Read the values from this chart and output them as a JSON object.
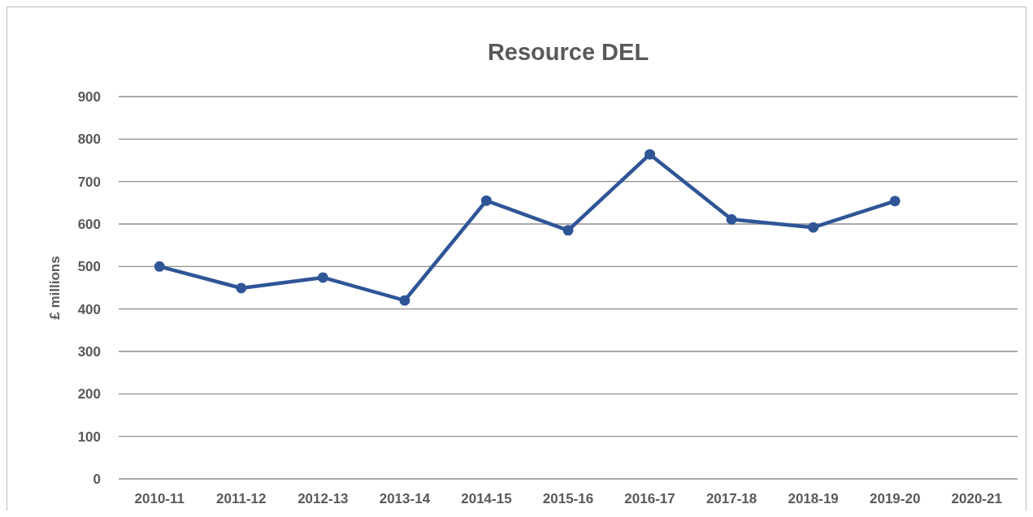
{
  "chart_data": {
    "type": "line",
    "title": "Resource DEL",
    "ylabel": "£ millions",
    "categories": [
      "2010-11",
      "2011-12",
      "2012-13",
      "2013-14",
      "2014-15",
      "2015-16",
      "2016-17",
      "2017-18",
      "2018-19",
      "2019-20",
      "2020-21"
    ],
    "series": [
      {
        "color": "#2f5597",
        "values": [
          500,
          449,
          474,
          420,
          655,
          585,
          764,
          611,
          592,
          654,
          null
        ]
      }
    ],
    "ylim": [
      0,
      900
    ],
    "yticks": [
      0,
      100,
      200,
      300,
      400,
      500,
      600,
      700,
      800,
      900
    ],
    "grid": "y",
    "marker": "circle",
    "line_style": "solid"
  }
}
